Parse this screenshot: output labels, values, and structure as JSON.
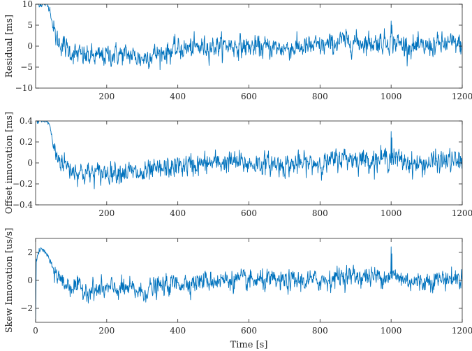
{
  "colors": {
    "series": "#0072BD",
    "axis": "#262626",
    "background": "#ffffff"
  },
  "chart_data": [
    {
      "type": "line",
      "ylabel": "Residual [ms]",
      "xlabel": "",
      "xlim": [
        0,
        1200
      ],
      "ylim": [
        -10,
        10
      ],
      "xticks": [
        200,
        400,
        600,
        800,
        1000,
        1200
      ],
      "yticks": [
        -10,
        -5,
        0,
        5,
        10
      ],
      "grid": false,
      "noise": 1.6,
      "keypoints": [
        [
          0,
          10
        ],
        [
          30,
          10
        ],
        [
          40,
          9
        ],
        [
          50,
          4
        ],
        [
          60,
          1.5
        ],
        [
          80,
          0
        ],
        [
          100,
          -1.5
        ],
        [
          140,
          -2.5
        ],
        [
          180,
          -2.5
        ],
        [
          220,
          -2
        ],
        [
          260,
          -2
        ],
        [
          280,
          -2.5
        ],
        [
          300,
          -3
        ],
        [
          320,
          -2.2
        ],
        [
          360,
          -1.5
        ],
        [
          400,
          -0.8
        ],
        [
          450,
          -0.4
        ],
        [
          500,
          0
        ],
        [
          550,
          0.2
        ],
        [
          600,
          -0.2
        ],
        [
          650,
          -0.3
        ],
        [
          700,
          -0.5
        ],
        [
          750,
          -0.3
        ],
        [
          800,
          0
        ],
        [
          830,
          0.3
        ],
        [
          860,
          1.2
        ],
        [
          900,
          1.0
        ],
        [
          950,
          0.8
        ],
        [
          1000,
          1.2
        ],
        [
          1040,
          0.2
        ],
        [
          1080,
          -0.5
        ],
        [
          1120,
          0.2
        ],
        [
          1160,
          0.6
        ],
        [
          1200,
          0.3
        ]
      ],
      "spikes": [
        [
          1000,
          6
        ],
        [
          1002,
          5
        ]
      ]
    },
    {
      "type": "line",
      "ylabel": "Offset innovation [ms]",
      "xlabel": "",
      "xlim": [
        0,
        1200
      ],
      "ylim": [
        -0.4,
        0.4
      ],
      "xticks": [
        200,
        400,
        600,
        800,
        1000,
        1200
      ],
      "yticks": [
        -0.4,
        -0.2,
        0,
        0.2,
        0.4
      ],
      "grid": false,
      "noise": 0.065,
      "keypoints": [
        [
          0,
          0.4
        ],
        [
          30,
          0.4
        ],
        [
          40,
          0.36
        ],
        [
          50,
          0.15
        ],
        [
          60,
          0.06
        ],
        [
          80,
          0.0
        ],
        [
          100,
          -0.06
        ],
        [
          140,
          -0.1
        ],
        [
          180,
          -0.1
        ],
        [
          220,
          -0.08
        ],
        [
          260,
          -0.08
        ],
        [
          280,
          -0.1
        ],
        [
          300,
          -0.12
        ],
        [
          320,
          -0.09
        ],
        [
          360,
          -0.06
        ],
        [
          400,
          -0.03
        ],
        [
          450,
          -0.02
        ],
        [
          500,
          0
        ],
        [
          550,
          0.01
        ],
        [
          600,
          -0.01
        ],
        [
          650,
          -0.01
        ],
        [
          700,
          -0.02
        ],
        [
          750,
          -0.01
        ],
        [
          800,
          0
        ],
        [
          830,
          0.01
        ],
        [
          860,
          0.05
        ],
        [
          900,
          0.04
        ],
        [
          950,
          0.03
        ],
        [
          1000,
          0.05
        ],
        [
          1040,
          0.01
        ],
        [
          1080,
          -0.02
        ],
        [
          1120,
          0.01
        ],
        [
          1160,
          0.02
        ],
        [
          1200,
          0.01
        ]
      ],
      "spikes": [
        [
          1000,
          0.3
        ],
        [
          1002,
          0.24
        ]
      ]
    },
    {
      "type": "line",
      "ylabel": "Skew Innovation [us/s]",
      "xlabel": "Time [s]",
      "xlim": [
        0,
        1200
      ],
      "ylim": [
        -3,
        3
      ],
      "xticks": [
        0,
        200,
        400,
        600,
        800,
        1000,
        1200
      ],
      "yticks": [
        -2,
        0,
        2
      ],
      "grid": false,
      "noise": 0.45,
      "keypoints": [
        [
          0,
          -3
        ],
        [
          2,
          1.4
        ],
        [
          8,
          2.0
        ],
        [
          15,
          2.2
        ],
        [
          25,
          2.1
        ],
        [
          35,
          1.7
        ],
        [
          45,
          1.0
        ],
        [
          60,
          0.4
        ],
        [
          80,
          -0.2
        ],
        [
          100,
          -0.4
        ],
        [
          140,
          -0.7
        ],
        [
          180,
          -0.7
        ],
        [
          220,
          -0.6
        ],
        [
          260,
          -0.6
        ],
        [
          280,
          -0.7
        ],
        [
          300,
          -0.9
        ],
        [
          320,
          -0.6
        ],
        [
          360,
          -0.4
        ],
        [
          400,
          -0.2
        ],
        [
          450,
          -0.1
        ],
        [
          500,
          0
        ],
        [
          550,
          0.05
        ],
        [
          600,
          -0.05
        ],
        [
          650,
          -0.05
        ],
        [
          700,
          -0.1
        ],
        [
          750,
          -0.05
        ],
        [
          800,
          0
        ],
        [
          830,
          0.1
        ],
        [
          860,
          0.35
        ],
        [
          900,
          0.3
        ],
        [
          950,
          0.25
        ],
        [
          1000,
          0.35
        ],
        [
          1040,
          0.05
        ],
        [
          1080,
          -0.15
        ],
        [
          1120,
          0.05
        ],
        [
          1160,
          0.15
        ],
        [
          1200,
          0.1
        ]
      ],
      "spikes": [
        [
          1000,
          2.4
        ],
        [
          1002,
          1.9
        ]
      ]
    }
  ]
}
